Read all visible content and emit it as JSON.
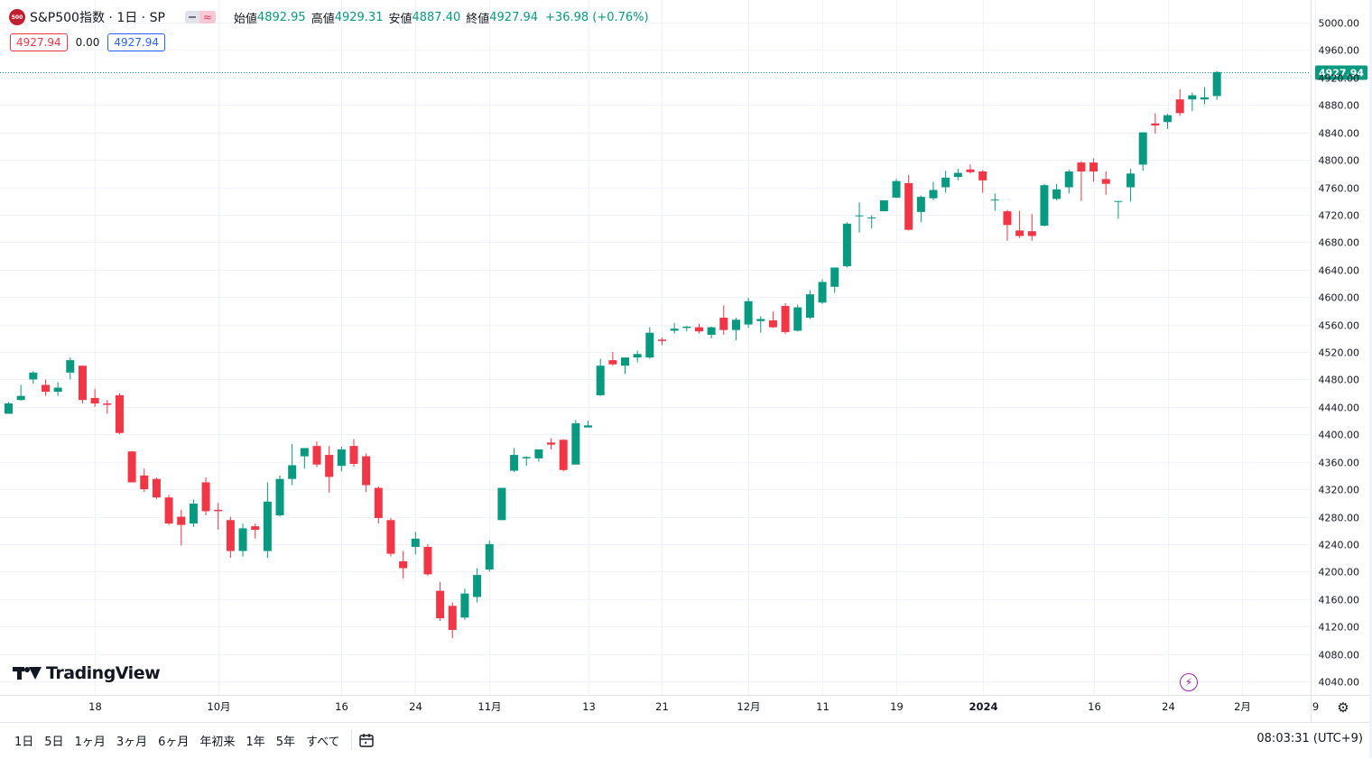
{
  "legend": {
    "logo_text": "500",
    "title": "S&P500指数 · 1日 · SP",
    "pill_b": "≈",
    "open_label": "始値",
    "open_value": "4892.95",
    "high_label": "高値",
    "high_value": "4929.31",
    "low_label": "安値",
    "low_value": "4887.40",
    "close_label": "終値",
    "close_value": "4927.94",
    "change": "+36.98 (+0.76%)"
  },
  "order_boxes": {
    "sell": "4927.94",
    "spread": "0.00",
    "buy": "4927.94"
  },
  "brand": "TradingView",
  "toolbar": {
    "timeframes": [
      "1日",
      "5日",
      "1ヶ月",
      "3ヶ月",
      "6ヶ月",
      "年初来",
      "1年",
      "5年",
      "すべて"
    ],
    "clock": "08:03:31 (UTC+9)"
  },
  "icons": {
    "calendar": "calendar-range-icon",
    "gear": "gear-icon",
    "bolt": "lightning-icon"
  },
  "colors": {
    "up": "#089981",
    "down": "#f23645",
    "price_label": "#089981",
    "grid": "#f0f3fa"
  },
  "chart_data": {
    "type": "candlestick",
    "title": "S&P500指数 · 1日 · SP",
    "last_price": 4927.94,
    "y_axis": {
      "range": [
        4020,
        5020
      ],
      "ticks": [
        4040,
        4080,
        4120,
        4160,
        4200,
        4240,
        4280,
        4320,
        4360,
        4400,
        4440,
        4480,
        4520,
        4560,
        4600,
        4640,
        4680,
        4720,
        4760,
        4800,
        4840,
        4880,
        4920,
        4960,
        5000
      ],
      "tick_labels": [
        "4040.00",
        "4080.00",
        "4120.00",
        "4160.00",
        "4200.00",
        "4240.00",
        "4280.00",
        "4320.00",
        "4360.00",
        "4400.00",
        "4440.00",
        "4480.00",
        "4520.00",
        "4560.00",
        "4600.00",
        "4640.00",
        "4680.00",
        "4720.00",
        "4760.00",
        "4800.00",
        "4840.00",
        "4880.00",
        "4920.00",
        "4960.00",
        "5000.00"
      ]
    },
    "x_axis": {
      "labels": [
        {
          "text": "18",
          "bar": 7,
          "bold": false
        },
        {
          "text": "10月",
          "bar": 17,
          "bold": false
        },
        {
          "text": "16",
          "bar": 27,
          "bold": false
        },
        {
          "text": "24",
          "bar": 33,
          "bold": false
        },
        {
          "text": "11月",
          "bar": 39,
          "bold": false
        },
        {
          "text": "13",
          "bar": 47,
          "bold": false
        },
        {
          "text": "21",
          "bar": 53,
          "bold": false
        },
        {
          "text": "12月",
          "bar": 60,
          "bold": false
        },
        {
          "text": "11",
          "bar": 66,
          "bold": false
        },
        {
          "text": "19",
          "bar": 72,
          "bold": false
        },
        {
          "text": "2024",
          "bar": 79,
          "bold": true
        },
        {
          "text": "16",
          "bar": 88,
          "bold": false
        },
        {
          "text": "24",
          "bar": 94,
          "bold": false
        },
        {
          "text": "2月",
          "bar": 100,
          "bold": false
        },
        {
          "text": "9",
          "bar": 106,
          "bold": false
        }
      ]
    },
    "grid": true,
    "candles": [
      {
        "o": 4430,
        "h": 4447,
        "l": 4430,
        "c": 4445
      },
      {
        "o": 4450,
        "h": 4472,
        "l": 4449,
        "c": 4456
      },
      {
        "o": 4480,
        "h": 4492,
        "l": 4474,
        "c": 4490
      },
      {
        "o": 4472,
        "h": 4480,
        "l": 4456,
        "c": 4462
      },
      {
        "o": 4462,
        "h": 4476,
        "l": 4456,
        "c": 4468
      },
      {
        "o": 4490,
        "h": 4512,
        "l": 4480,
        "c": 4508
      },
      {
        "o": 4500,
        "h": 4500,
        "l": 4445,
        "c": 4450
      },
      {
        "o": 4453,
        "h": 4466,
        "l": 4440,
        "c": 4445
      },
      {
        "o": 4445,
        "h": 4450,
        "l": 4430,
        "c": 4443
      },
      {
        "o": 4457,
        "h": 4460,
        "l": 4400,
        "c": 4402
      },
      {
        "o": 4375,
        "h": 4376,
        "l": 4330,
        "c": 4330
      },
      {
        "o": 4340,
        "h": 4350,
        "l": 4316,
        "c": 4320
      },
      {
        "o": 4335,
        "h": 4337,
        "l": 4306,
        "c": 4308
      },
      {
        "o": 4308,
        "h": 4312,
        "l": 4268,
        "c": 4270
      },
      {
        "o": 4280,
        "h": 4290,
        "l": 4238,
        "c": 4268
      },
      {
        "o": 4270,
        "h": 4305,
        "l": 4265,
        "c": 4299
      },
      {
        "o": 4330,
        "h": 4337,
        "l": 4282,
        "c": 4288
      },
      {
        "o": 4290,
        "h": 4300,
        "l": 4261,
        "c": 4288
      },
      {
        "o": 4275,
        "h": 4280,
        "l": 4220,
        "c": 4230
      },
      {
        "o": 4230,
        "h": 4270,
        "l": 4222,
        "c": 4263
      },
      {
        "o": 4266,
        "h": 4270,
        "l": 4248,
        "c": 4261
      },
      {
        "o": 4230,
        "h": 4330,
        "l": 4220,
        "c": 4302
      },
      {
        "o": 4282,
        "h": 4340,
        "l": 4280,
        "c": 4335
      },
      {
        "o": 4335,
        "h": 4386,
        "l": 4326,
        "c": 4355
      },
      {
        "o": 4368,
        "h": 4380,
        "l": 4350,
        "c": 4380
      },
      {
        "o": 4383,
        "h": 4390,
        "l": 4352,
        "c": 4356
      },
      {
        "o": 4370,
        "h": 4383,
        "l": 4315,
        "c": 4338
      },
      {
        "o": 4354,
        "h": 4382,
        "l": 4346,
        "c": 4378
      },
      {
        "o": 4383,
        "h": 4393,
        "l": 4353,
        "c": 4357
      },
      {
        "o": 4368,
        "h": 4372,
        "l": 4316,
        "c": 4326
      },
      {
        "o": 4322,
        "h": 4324,
        "l": 4270,
        "c": 4278
      },
      {
        "o": 4275,
        "h": 4278,
        "l": 4222,
        "c": 4226
      },
      {
        "o": 4215,
        "h": 4230,
        "l": 4190,
        "c": 4205
      },
      {
        "o": 4236,
        "h": 4258,
        "l": 4225,
        "c": 4248
      },
      {
        "o": 4236,
        "h": 4240,
        "l": 4194,
        "c": 4196
      },
      {
        "o": 4172,
        "h": 4185,
        "l": 4128,
        "c": 4132
      },
      {
        "o": 4150,
        "h": 4155,
        "l": 4103,
        "c": 4115
      },
      {
        "o": 4133,
        "h": 4175,
        "l": 4130,
        "c": 4168
      },
      {
        "o": 4163,
        "h": 4205,
        "l": 4155,
        "c": 4195
      },
      {
        "o": 4203,
        "h": 4245,
        "l": 4200,
        "c": 4240
      },
      {
        "o": 4275,
        "h": 4320,
        "l": 4275,
        "c": 4322
      },
      {
        "o": 4347,
        "h": 4380,
        "l": 4345,
        "c": 4370
      },
      {
        "o": 4365,
        "h": 4368,
        "l": 4354,
        "c": 4367
      },
      {
        "o": 4365,
        "h": 4378,
        "l": 4360,
        "c": 4378
      },
      {
        "o": 4388,
        "h": 4394,
        "l": 4378,
        "c": 4385
      },
      {
        "o": 4392,
        "h": 4393,
        "l": 4346,
        "c": 4348
      },
      {
        "o": 4356,
        "h": 4421,
        "l": 4356,
        "c": 4416
      },
      {
        "o": 4410,
        "h": 4420,
        "l": 4410,
        "c": 4413
      },
      {
        "o": 4457,
        "h": 4510,
        "l": 4456,
        "c": 4500
      },
      {
        "o": 4508,
        "h": 4520,
        "l": 4500,
        "c": 4502
      },
      {
        "o": 4500,
        "h": 4512,
        "l": 4488,
        "c": 4512
      },
      {
        "o": 4512,
        "h": 4522,
        "l": 4505,
        "c": 4517
      },
      {
        "o": 4512,
        "h": 4556,
        "l": 4510,
        "c": 4548
      },
      {
        "o": 4538,
        "h": 4541,
        "l": 4530,
        "c": 4536
      },
      {
        "o": 4551,
        "h": 4562,
        "l": 4547,
        "c": 4554
      },
      {
        "o": 4555,
        "h": 4558,
        "l": 4550,
        "c": 4557
      },
      {
        "o": 4556,
        "h": 4561,
        "l": 4547,
        "c": 4550
      },
      {
        "o": 4545,
        "h": 4557,
        "l": 4540,
        "c": 4556
      },
      {
        "o": 4570,
        "h": 4588,
        "l": 4545,
        "c": 4552
      },
      {
        "o": 4552,
        "h": 4570,
        "l": 4537,
        "c": 4567
      },
      {
        "o": 4560,
        "h": 4599,
        "l": 4555,
        "c": 4594
      },
      {
        "o": 4565,
        "h": 4572,
        "l": 4548,
        "c": 4568
      },
      {
        "o": 4566,
        "h": 4579,
        "l": 4555,
        "c": 4556
      },
      {
        "o": 4587,
        "h": 4591,
        "l": 4546,
        "c": 4549
      },
      {
        "o": 4551,
        "h": 4589,
        "l": 4550,
        "c": 4585
      },
      {
        "o": 4570,
        "h": 4610,
        "l": 4568,
        "c": 4604
      },
      {
        "o": 4592,
        "h": 4626,
        "l": 4590,
        "c": 4622
      },
      {
        "o": 4615,
        "h": 4643,
        "l": 4606,
        "c": 4643
      },
      {
        "o": 4645,
        "h": 4709,
        "l": 4643,
        "c": 4707
      },
      {
        "o": 4719,
        "h": 4738,
        "l": 4694,
        "c": 4719
      },
      {
        "o": 4716,
        "h": 4719,
        "l": 4700,
        "c": 4716
      },
      {
        "o": 4725,
        "h": 4740,
        "l": 4725,
        "c": 4741
      },
      {
        "o": 4745,
        "h": 4772,
        "l": 4744,
        "c": 4769
      },
      {
        "o": 4766,
        "h": 4778,
        "l": 4697,
        "c": 4698
      },
      {
        "o": 4724,
        "h": 4748,
        "l": 4709,
        "c": 4746
      },
      {
        "o": 4744,
        "h": 4768,
        "l": 4741,
        "c": 4756
      },
      {
        "o": 4760,
        "h": 4784,
        "l": 4752,
        "c": 4774
      },
      {
        "o": 4775,
        "h": 4787,
        "l": 4770,
        "c": 4781
      },
      {
        "o": 4786,
        "h": 4793,
        "l": 4780,
        "c": 4782
      },
      {
        "o": 4783,
        "h": 4785,
        "l": 4752,
        "c": 4770
      },
      {
        "o": 4742,
        "h": 4751,
        "l": 4726,
        "c": 4742
      },
      {
        "o": 4725,
        "h": 4727,
        "l": 4682,
        "c": 4705
      },
      {
        "o": 4697,
        "h": 4726,
        "l": 4686,
        "c": 4689
      },
      {
        "o": 4696,
        "h": 4721,
        "l": 4682,
        "c": 4689
      },
      {
        "o": 4704,
        "h": 4765,
        "l": 4703,
        "c": 4763
      },
      {
        "o": 4743,
        "h": 4765,
        "l": 4741,
        "c": 4757
      },
      {
        "o": 4760,
        "h": 4786,
        "l": 4751,
        "c": 4783
      },
      {
        "o": 4796,
        "h": 4798,
        "l": 4740,
        "c": 4783
      },
      {
        "o": 4796,
        "h": 4802,
        "l": 4768,
        "c": 4783
      },
      {
        "o": 4772,
        "h": 4783,
        "l": 4749,
        "c": 4765
      },
      {
        "o": 4739,
        "h": 4739,
        "l": 4714,
        "c": 4740
      },
      {
        "o": 4760,
        "h": 4787,
        "l": 4739,
        "c": 4780
      },
      {
        "o": 4793,
        "h": 4840,
        "l": 4784,
        "c": 4840
      },
      {
        "o": 4853,
        "h": 4868,
        "l": 4838,
        "c": 4850
      },
      {
        "o": 4855,
        "h": 4867,
        "l": 4845,
        "c": 4865
      },
      {
        "o": 4888,
        "h": 4903,
        "l": 4864,
        "c": 4868
      },
      {
        "o": 4888,
        "h": 4898,
        "l": 4871,
        "c": 4894
      },
      {
        "o": 4888,
        "h": 4906,
        "l": 4881,
        "c": 4891
      },
      {
        "o": 4892.95,
        "h": 4929.31,
        "l": 4887.4,
        "c": 4927.94
      }
    ]
  }
}
